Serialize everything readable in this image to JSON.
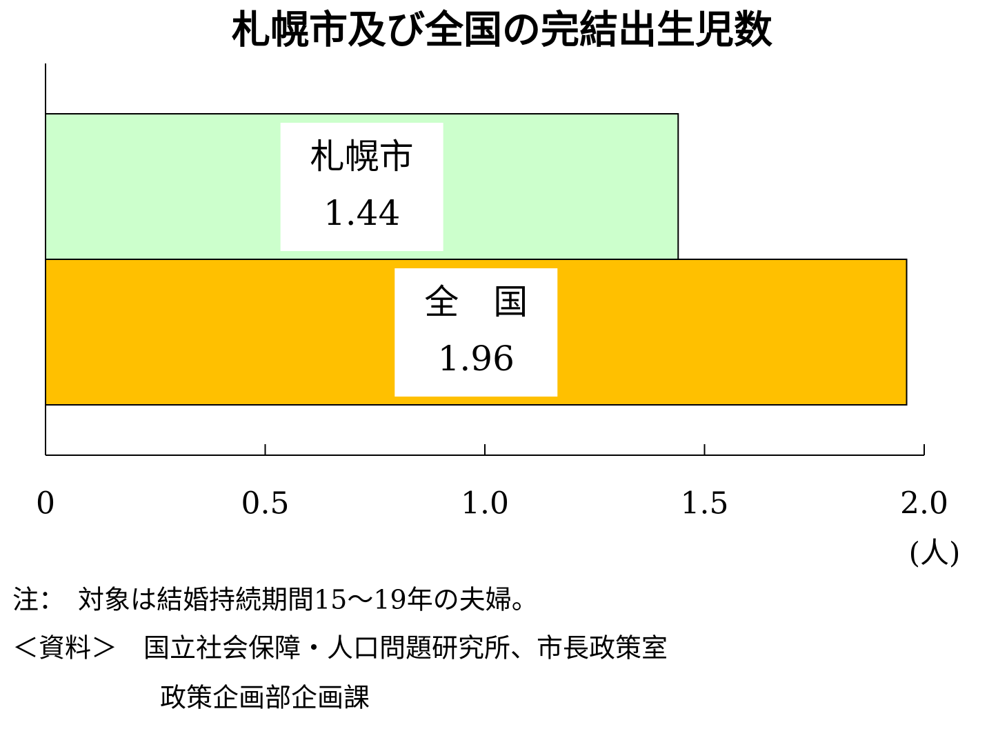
{
  "chart_data": {
    "type": "hbar",
    "title": "札幌市及び全国の完結出生児数",
    "categories": [
      "札幌市",
      "全　国"
    ],
    "values": [
      1.44,
      1.96
    ],
    "colors": [
      "#ccffcc",
      "#ffc000"
    ],
    "xlim": [
      0,
      2.0
    ],
    "xticks": [
      0,
      {
        "value": 0.5,
        "label": "0.5"
      },
      {
        "value": 1.0,
        "label": "1.0"
      },
      {
        "value": 1.5,
        "label": "1.5"
      },
      {
        "value": 2.0,
        "label": "2.0"
      }
    ],
    "xlabel": "(人)",
    "notes": [
      "注：　対象は結婚持続期間15～19年の夫婦。",
      "＜資料＞　国立社会保障・人口問題研究所、市長政策室",
      "政策企画部企画課"
    ]
  }
}
